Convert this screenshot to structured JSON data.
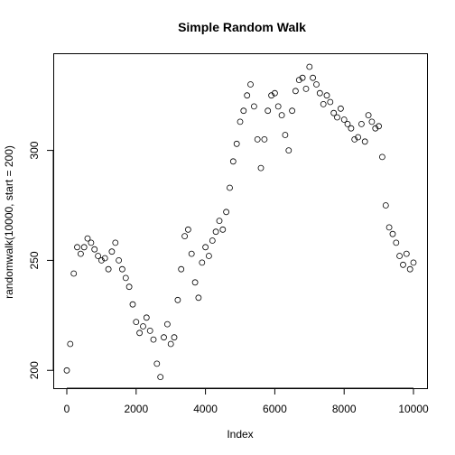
{
  "chart_data": {
    "type": "scatter",
    "title": "Simple Random Walk",
    "xlabel": "Index",
    "ylabel": "randomwalk(10000, start = 200)",
    "xlim": [
      0,
      10000
    ],
    "ylim": [
      190,
      342
    ],
    "x_ticks": [
      0,
      2000,
      4000,
      6000,
      8000,
      10000
    ],
    "y_ticks": [
      200,
      250,
      300
    ],
    "grid": false,
    "legend": "none",
    "marker": "open-circle",
    "color": "#000000",
    "n_points": 10000,
    "series": [
      {
        "x": [
          0,
          100,
          200,
          300,
          400,
          500,
          600,
          700,
          800,
          900,
          1000,
          1100,
          1200,
          1300,
          1400,
          1500,
          1600,
          1700,
          1800,
          1900,
          2000,
          2100,
          2200,
          2300,
          2400,
          2500,
          2600,
          2700,
          2800,
          2900,
          3000,
          3100,
          3200,
          3300,
          3400,
          3500,
          3600,
          3700,
          3800,
          3900,
          4000,
          4100,
          4200,
          4300,
          4400,
          4500,
          4600,
          4700,
          4800,
          4900,
          5000,
          5100,
          5200,
          5300,
          5400,
          5500,
          5600,
          5700,
          5800,
          5900,
          6000,
          6100,
          6200,
          6300,
          6400,
          6500,
          6600,
          6700,
          6800,
          6900,
          7000,
          7100,
          7200,
          7300,
          7400,
          7500,
          7600,
          7700,
          7800,
          7900,
          8000,
          8100,
          8200,
          8300,
          8400,
          8500,
          8600,
          8700,
          8800,
          8900,
          9000,
          9100,
          9200,
          9300,
          9400,
          9500,
          9600,
          9700,
          9800,
          9900,
          10000
        ],
        "y": [
          200,
          212,
          244,
          256,
          253,
          256,
          260,
          258,
          255,
          252,
          250,
          251,
          246,
          254,
          258,
          250,
          246,
          242,
          238,
          230,
          222,
          217,
          220,
          224,
          218,
          214,
          203,
          197,
          215,
          221,
          212,
          215,
          232,
          246,
          261,
          264,
          253,
          240,
          233,
          249,
          256,
          252,
          259,
          263,
          268,
          264,
          272,
          283,
          295,
          303,
          313,
          318,
          325,
          330,
          320,
          305,
          292,
          305,
          318,
          325,
          326,
          320,
          316,
          307,
          300,
          318,
          327,
          332,
          333,
          328,
          338,
          333,
          330,
          326,
          321,
          325,
          322,
          317,
          315,
          319,
          314,
          312,
          310,
          305,
          306,
          312,
          304,
          316,
          313,
          310,
          311,
          297,
          275,
          265,
          262,
          258,
          252,
          248,
          253,
          246,
          249
        ]
      }
    ]
  }
}
